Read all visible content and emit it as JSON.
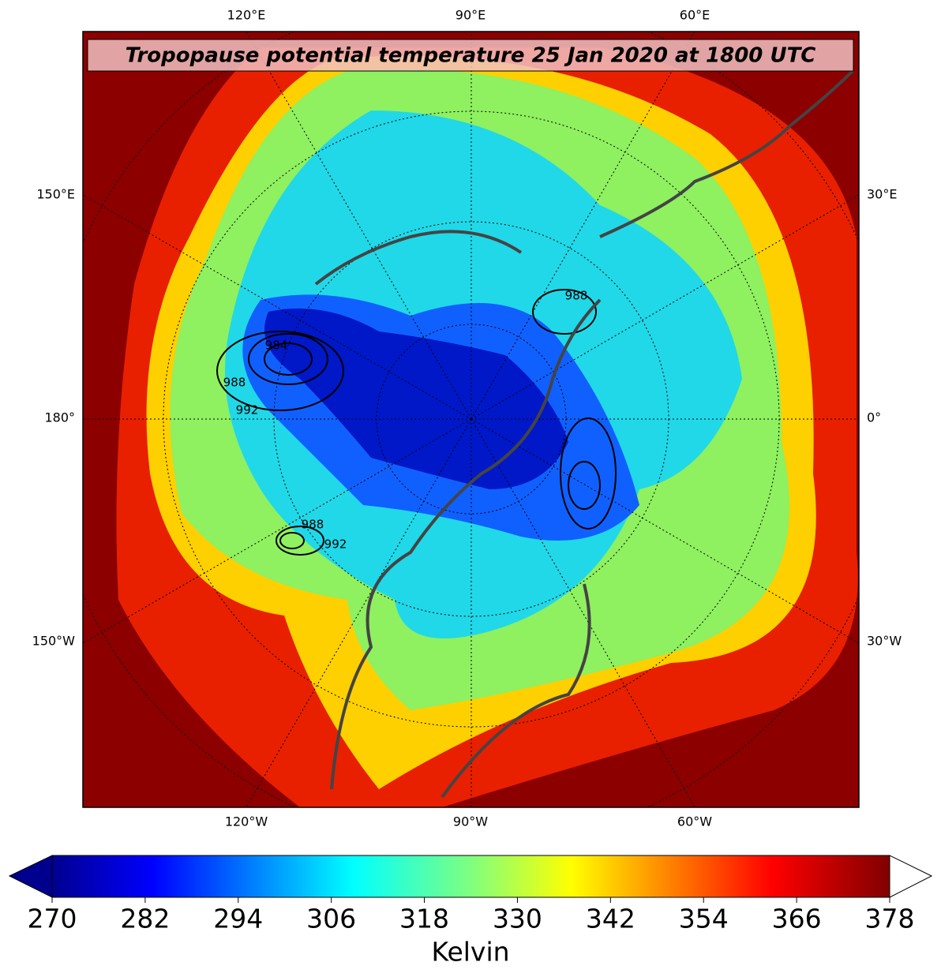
{
  "title": "Tropopause potential temperature 25 Jan 2020 at 1800 UTC",
  "map": {
    "top_labels": [
      "120°E",
      "90°E",
      "60°E"
    ],
    "bottom_labels": [
      "120°W",
      "90°W",
      "60°W"
    ],
    "left_labels": [
      "150°E",
      "180°",
      "150°W"
    ],
    "right_labels": [
      "30°E",
      "0°",
      "30°W"
    ],
    "contour_labels": [
      "984",
      "988",
      "992",
      "988",
      "992",
      "988"
    ]
  },
  "colorbar": {
    "label": "Kelvin",
    "lim": [
      270,
      378
    ],
    "ticks": [
      270,
      282,
      294,
      306,
      318,
      330,
      342,
      354,
      366,
      378
    ],
    "extend": "both"
  }
}
